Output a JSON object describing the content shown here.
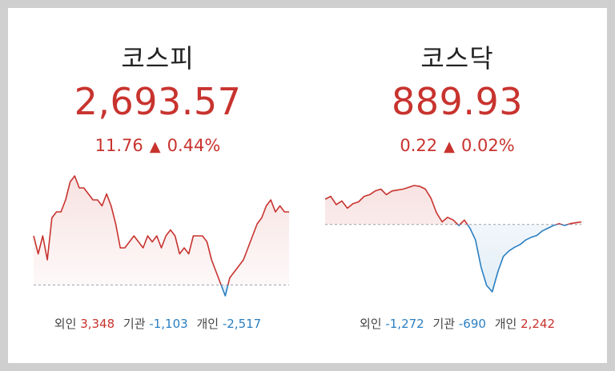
{
  "kospi": {
    "title": "코스피",
    "value": "2,693.57",
    "change": "11.76",
    "arrow": "▲",
    "percent": "0.44%",
    "flows": {
      "foreign_label": "외인",
      "foreign_value": "3,348",
      "institution_label": "기관",
      "institution_value": "-1,103",
      "individual_label": "개인",
      "individual_value": "-2,517"
    },
    "chart_data": {
      "type": "line",
      "baseline": 2681.81,
      "values": [
        2690,
        2687,
        2690,
        2686,
        2693,
        2694,
        2694,
        2696,
        2699,
        2700,
        2698,
        2698,
        2697,
        2696,
        2696,
        2695,
        2697,
        2695,
        2692,
        2688,
        2688,
        2689,
        2690,
        2689,
        2688,
        2690,
        2689,
        2690,
        2688,
        2690,
        2691,
        2690,
        2687,
        2688,
        2687,
        2690,
        2690,
        2690,
        2689,
        2686,
        2684,
        2682,
        2680,
        2683,
        2684,
        2685,
        2686,
        2688,
        2690,
        2692,
        2693,
        2695,
        2696,
        2694,
        2695,
        2694,
        2694
      ],
      "colors": {
        "up": "#c8332e",
        "down": "#2a7fc1",
        "baseline": "#9aa0a6"
      }
    }
  },
  "kosdaq": {
    "title": "코스닥",
    "value": "889.93",
    "change": "0.22",
    "arrow": "▲",
    "percent": "0.02%",
    "flows": {
      "foreign_label": "외인",
      "foreign_value": "-1,272",
      "institution_label": "기관",
      "institution_value": "-690",
      "individual_label": "개인",
      "individual_value": "2,242"
    },
    "chart_data": {
      "type": "line",
      "baseline": 889.71,
      "values": [
        892.5,
        892.8,
        891.9,
        892.3,
        891.5,
        892.0,
        892.2,
        892.8,
        893.0,
        893.4,
        893.6,
        893.0,
        893.4,
        893.5,
        893.6,
        893.8,
        894.0,
        893.9,
        893.6,
        892.6,
        891.0,
        890.0,
        890.5,
        890.2,
        889.6,
        890.2,
        889.3,
        888.0,
        885.0,
        883.0,
        882.3,
        884.5,
        886.2,
        886.8,
        887.2,
        887.5,
        888.0,
        888.3,
        888.5,
        889.0,
        889.3,
        889.6,
        889.8,
        889.6,
        889.8,
        889.9,
        890.0
      ],
      "colors": {
        "up": "#c8332e",
        "down": "#2a7fc1",
        "baseline": "#9aa0a6"
      }
    }
  }
}
